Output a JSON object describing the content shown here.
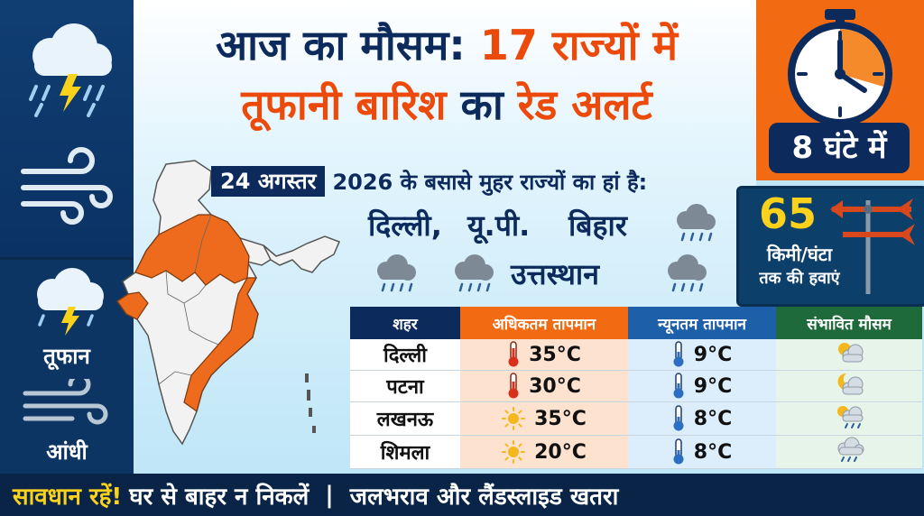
{
  "header": {
    "title_part1": "आज का मौसम: ",
    "title_part2": "17 राज्यों में",
    "title_line2_part1": "तूफानी बारिश ",
    "title_line2_part2": "का ",
    "title_line2_part3": "रेड अलर्ट"
  },
  "clock": {
    "label": "8 घंटे में",
    "icon": "clock-icon"
  },
  "wind": {
    "speed": "65",
    "unit": "किमी/घंटा",
    "caption": "तक की हवाएं",
    "icon": "wind-vane-icon"
  },
  "date_bar": {
    "date": "24 अगस्तर",
    "text": "2026 के बसासे मुहर राज्यों का हां है:"
  },
  "states": [
    "दिल्ली,",
    "यू.पी.",
    "बिहार",
    "उत्तस्थान"
  ],
  "side": {
    "storm_label": "तूफान",
    "dust_label": "आंधी"
  },
  "table": {
    "headers": [
      "शहर",
      "अधिकतम तापमान",
      "न्यूनतम तापमान",
      "संभावित मौसम"
    ],
    "rows": [
      {
        "city": "दिल्ली",
        "max": "35°C",
        "max_icon": "thermometer-hot-icon",
        "min": "9°C",
        "cond_icon": "partly-cloudy-icon"
      },
      {
        "city": "पटना",
        "max": "30°C",
        "max_icon": "thermometer-hot-icon",
        "min": "9°C",
        "cond_icon": "moon-cloud-icon"
      },
      {
        "city": "लखनऊ",
        "max": "35°C",
        "max_icon": "sun-icon",
        "min": "8°C",
        "cond_icon": "sun-rain-icon"
      },
      {
        "city": "शिमला",
        "max": "20°C",
        "max_icon": "sun-icon",
        "min": "8°C",
        "cond_icon": "rain-cloud-icon"
      }
    ]
  },
  "footer": {
    "warning": "सावधान रहें!",
    "advice": "घर से बाहर न निकलें",
    "separator": "|",
    "risk": "जलभराव और लैंडस्लाइड खतरा"
  },
  "colors": {
    "navy": "#0d2a5c",
    "orange": "#ec4a0a",
    "yellow": "#fbd21b",
    "sky": "#bfe6f7"
  }
}
